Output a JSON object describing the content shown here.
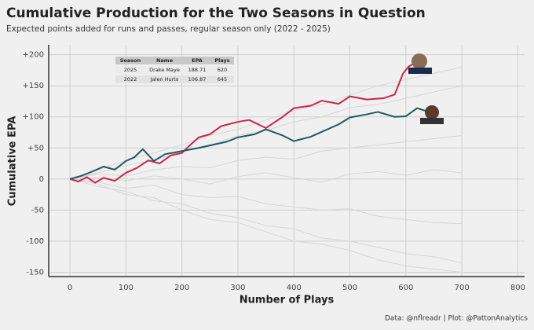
{
  "chart_data": {
    "type": "line",
    "title": "Cumulative Production for the Two Seasons in Question",
    "subtitle": "Expected points added for runs and passes, regular season only (2022 - 2025)",
    "x_label": "Number of Plays",
    "y_label": "Cumulative EPA",
    "caption": "Data: @nflreadr | Plot: @PattonAnalytics",
    "xlim": [
      -38,
      812
    ],
    "ylim": [
      -157,
      216
    ],
    "xticks": [
      0,
      100,
      200,
      300,
      400,
      500,
      600,
      700,
      800
    ],
    "yticks": [
      {
        "value": 200,
        "label": "+200"
      },
      {
        "value": 150,
        "label": "+150"
      },
      {
        "value": 100,
        "label": "+100"
      },
      {
        "value": 50,
        "label": "+50"
      },
      0,
      -50,
      -100,
      -150
    ],
    "grid": true,
    "series": [
      {
        "name": "Drake Maye",
        "color": "#c8264a",
        "x": [
          0,
          15,
          30,
          45,
          60,
          80,
          100,
          120,
          140,
          160,
          180,
          200,
          215,
          230,
          250,
          270,
          300,
          320,
          350,
          380,
          400,
          430,
          450,
          480,
          500,
          530,
          560,
          580,
          595,
          605,
          620
        ],
        "values": [
          0,
          -4,
          3,
          -6,
          2,
          -3,
          10,
          18,
          30,
          25,
          38,
          42,
          55,
          67,
          72,
          85,
          92,
          95,
          82,
          100,
          114,
          118,
          126,
          121,
          133,
          128,
          130,
          136,
          170,
          181,
          188.71
        ]
      },
      {
        "name": "Jalen Hurts",
        "color": "#1e5a62",
        "x": [
          0,
          20,
          40,
          60,
          80,
          100,
          115,
          130,
          150,
          170,
          200,
          230,
          250,
          280,
          300,
          330,
          350,
          380,
          400,
          430,
          450,
          480,
          500,
          530,
          550,
          580,
          600,
          620,
          645
        ],
        "values": [
          0,
          5,
          12,
          20,
          15,
          29,
          35,
          48,
          29,
          40,
          45,
          50,
          54,
          60,
          67,
          72,
          80,
          70,
          61,
          68,
          76,
          88,
          99,
          104,
          108,
          100,
          101,
          114,
          106.87
        ]
      }
    ],
    "background_x": [
      0,
      50,
      100,
      150,
      200,
      250,
      300,
      350,
      400,
      450,
      500,
      550,
      600,
      650,
      700
    ],
    "background_lines": [
      [
        0,
        10,
        22,
        30,
        45,
        55,
        70,
        78,
        92,
        100,
        115,
        120,
        130,
        140,
        150
      ],
      [
        0,
        -12,
        -20,
        -35,
        -40,
        -55,
        -62,
        -75,
        -80,
        -95,
        -100,
        -110,
        -120,
        -125,
        -135
      ],
      [
        0,
        8,
        5,
        15,
        20,
        18,
        30,
        35,
        32,
        45,
        50,
        55,
        60,
        65,
        70
      ],
      [
        0,
        -5,
        -15,
        -10,
        -25,
        -30,
        -28,
        -40,
        -45,
        -50,
        -48,
        -60,
        -65,
        -70,
        -72
      ],
      [
        0,
        15,
        30,
        42,
        55,
        70,
        80,
        95,
        110,
        120,
        135,
        150,
        160,
        170,
        180
      ],
      [
        0,
        2,
        -3,
        5,
        0,
        -8,
        4,
        10,
        2,
        -5,
        8,
        12,
        6,
        15,
        10
      ],
      [
        0,
        -8,
        -25,
        -30,
        -50,
        -65,
        -70,
        -85,
        -100,
        -105,
        -115,
        -130,
        -140,
        -145,
        -150
      ]
    ],
    "table": {
      "columns": [
        "Season",
        "Name",
        "EPA",
        "Plays"
      ],
      "rows": [
        [
          2025,
          "Drake Maye",
          188.71,
          620
        ],
        [
          2022,
          "Jalen Hurts",
          106.87,
          645
        ]
      ]
    }
  }
}
